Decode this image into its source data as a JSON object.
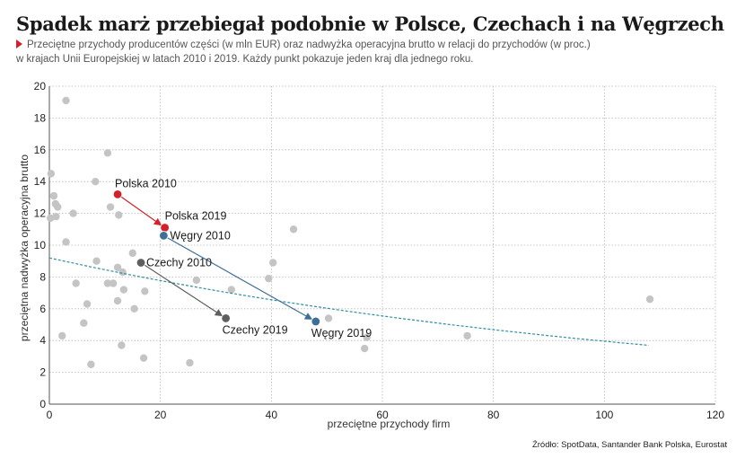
{
  "header": {
    "title": "Spadek marż przebiegał podobnie w Polsce, Czechach i na Węgrzech",
    "subtitle_line1": "Przeciętne przychody producentów części (w mln EUR) oraz nadwyżka operacyjna brutto w relacji do przychodów (w proc.)",
    "subtitle_line2": "w krajach Unii Europejskiej w latach 2010 i 2019. Każdy punkt pokazuje jeden kraj dla jednego roku."
  },
  "source": "Źródło: SpotData, Santander Bank Polska, Eurostat",
  "colors": {
    "background_points": "#c4c4c4",
    "poland": "#d3202a",
    "hungary": "#3f6f96",
    "czechia": "#5f5f5f",
    "trend": "#2e8fa3",
    "grid": "#b5b5b5",
    "marker": "#d3202a"
  },
  "chart_data": {
    "type": "scatter",
    "xlabel": "przeciętne przychody firm",
    "ylabel": "przeciętna nadwyżka operacyjna brutto",
    "xlim": [
      0,
      120
    ],
    "ylim": [
      0,
      20
    ],
    "xticks": [
      "0",
      "20",
      "40",
      "60",
      "80",
      "100",
      "120"
    ],
    "yticks": [
      "0",
      "2",
      "4",
      "6",
      "8",
      "10",
      "12",
      "14",
      "16",
      "18",
      "20"
    ],
    "grid": true,
    "points": [
      {
        "x": 3,
        "y": 19.1
      },
      {
        "x": 10.5,
        "y": 15.8
      },
      {
        "x": 0.3,
        "y": 14.5
      },
      {
        "x": 8.3,
        "y": 14.0
      },
      {
        "x": 0.8,
        "y": 13.1
      },
      {
        "x": 1.1,
        "y": 12.6
      },
      {
        "x": 1.5,
        "y": 12.4
      },
      {
        "x": 11,
        "y": 12.4
      },
      {
        "x": 4.3,
        "y": 12.0
      },
      {
        "x": 12.5,
        "y": 11.9
      },
      {
        "x": 0.2,
        "y": 11.7
      },
      {
        "x": 1.2,
        "y": 11.8
      },
      {
        "x": 44,
        "y": 11.0
      },
      {
        "x": 3,
        "y": 10.2
      },
      {
        "x": 15,
        "y": 9.5
      },
      {
        "x": 8.5,
        "y": 9.0
      },
      {
        "x": 40.3,
        "y": 8.9
      },
      {
        "x": 12.3,
        "y": 8.6
      },
      {
        "x": 13.2,
        "y": 8.3
      },
      {
        "x": 39.5,
        "y": 7.9
      },
      {
        "x": 26.5,
        "y": 7.8
      },
      {
        "x": 4.8,
        "y": 7.6
      },
      {
        "x": 10.5,
        "y": 7.6
      },
      {
        "x": 11.5,
        "y": 7.6
      },
      {
        "x": 13.4,
        "y": 7.2
      },
      {
        "x": 17.2,
        "y": 7.1
      },
      {
        "x": 32.8,
        "y": 7.2
      },
      {
        "x": 12.3,
        "y": 6.5
      },
      {
        "x": 6.8,
        "y": 6.3
      },
      {
        "x": 15.3,
        "y": 6.0
      },
      {
        "x": 6.2,
        "y": 5.1
      },
      {
        "x": 50.3,
        "y": 5.4
      },
      {
        "x": 108.2,
        "y": 6.6
      },
      {
        "x": 2.3,
        "y": 4.3
      },
      {
        "x": 57.2,
        "y": 4.2
      },
      {
        "x": 75.3,
        "y": 4.3
      },
      {
        "x": 13,
        "y": 3.7
      },
      {
        "x": 56.8,
        "y": 3.5
      },
      {
        "x": 17,
        "y": 2.9
      },
      {
        "x": 7.5,
        "y": 2.5
      },
      {
        "x": 25.3,
        "y": 2.6
      }
    ],
    "highlighted": [
      {
        "country": "Polska",
        "color_key": "poland",
        "from": {
          "x": 12.3,
          "y": 13.2,
          "label": "Polska 2010"
        },
        "to": {
          "x": 20.8,
          "y": 11.1,
          "label": "Polska 2019"
        }
      },
      {
        "country": "Węgry",
        "color_key": "hungary",
        "from": {
          "x": 20.6,
          "y": 10.6,
          "label": "Węgry 2010"
        },
        "to": {
          "x": 48,
          "y": 5.2,
          "label": "Węgry 2019"
        }
      },
      {
        "country": "Czechy",
        "color_key": "czechia",
        "from": {
          "x": 16.5,
          "y": 8.9,
          "label": "Czechy 2010"
        },
        "to": {
          "x": 31.8,
          "y": 5.4,
          "label": "Czechy 2019"
        }
      }
    ],
    "trend": {
      "type": "exponential",
      "x": [
        0,
        108
      ],
      "y": [
        9.2,
        3.7
      ]
    }
  }
}
